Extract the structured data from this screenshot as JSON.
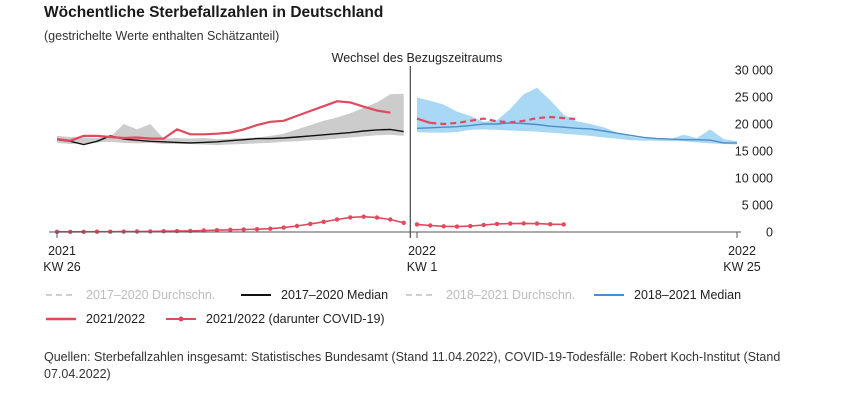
{
  "title": "Wöchentliche Sterbefallzahlen in Deutschland",
  "subtitle": "(gestrichelte Werte enthalten Schätzanteil)",
  "source": "Quellen: Sterbefallzahlen insgesamt: Statistisches Bundesamt (Stand 11.04.2022), COVID-19-Todesfälle: Robert Koch-Institut (Stand 07.04.2022)",
  "legend": [
    {
      "key": "avg1720",
      "label": "2017–2020 Durchschn.",
      "color": "#cfcfcf",
      "style": "dash",
      "faded": true
    },
    {
      "key": "med1720",
      "label": "2017–2020 Median",
      "color": "#111111",
      "style": "solid",
      "faded": false
    },
    {
      "key": "avg1821",
      "label": "2018–2021 Durchschn.",
      "color": "#cfcfcf",
      "style": "dash",
      "faded": true
    },
    {
      "key": "med1821",
      "label": "2018–2021 Median",
      "color": "#4a8fc9",
      "style": "solid",
      "faded": false
    },
    {
      "key": "y2122",
      "label": "2021/2022",
      "color": "#e0495e",
      "style": "solid",
      "faded": false
    },
    {
      "key": "covid",
      "label": "2021/2022 (darunter COVID-19)",
      "color": "#e0495e",
      "style": "dots",
      "faded": false
    }
  ],
  "chart_data": {
    "type": "line",
    "annotation": "Wechsel des Bezugszeitraums",
    "x_ticks": [
      {
        "index": 0,
        "year": "2021",
        "week": "KW 26"
      },
      {
        "index": 27,
        "year": "2022",
        "week": "KW 1"
      },
      {
        "index": 51,
        "year": "2022",
        "week": "KW 25"
      }
    ],
    "y_ticks": [
      "0",
      "5 000",
      "10 000",
      "15 000",
      "20 000",
      "25 000",
      "30 000"
    ],
    "y_tick_values": [
      0,
      5000,
      10000,
      15000,
      20000,
      25000,
      30000
    ],
    "ylim": [
      0,
      30000
    ],
    "x_count": 52,
    "grid": false,
    "band_2017_2020": {
      "x_start": 0,
      "min": [
        16500,
        16300,
        16400,
        16600,
        16700,
        16500,
        16400,
        16500,
        16300,
        16300,
        16300,
        16200,
        16100,
        16200,
        16300,
        16400,
        16500,
        16700,
        16800,
        17000,
        17100,
        17300,
        17500,
        17700,
        17900,
        18000,
        17800
      ],
      "max": [
        17800,
        17600,
        17500,
        17400,
        17600,
        20000,
        19000,
        20000,
        17300,
        17400,
        17300,
        17400,
        17200,
        17300,
        17400,
        17500,
        17800,
        18200,
        19000,
        19800,
        20600,
        21200,
        22000,
        23000,
        24000,
        25500,
        25600
      ]
    },
    "band_2018_2021": {
      "x_start": 27,
      "min": [
        18500,
        18400,
        18400,
        18500,
        18900,
        19000,
        18900,
        18800,
        18700,
        18600,
        18400,
        18200,
        18000,
        17800,
        17500,
        17300,
        17000,
        16900,
        16900,
        16800,
        16800,
        16600,
        16400,
        16300,
        16200
      ],
      "max": [
        24900,
        24300,
        23600,
        22300,
        21500,
        20400,
        20700,
        22800,
        25500,
        26700,
        24400,
        21700,
        20500,
        20000,
        19400,
        18400,
        17700,
        17300,
        17300,
        17200,
        18000,
        17400,
        19000,
        17200,
        16800
      ]
    },
    "series": [
      {
        "key": "med1720",
        "x_start": 0,
        "values": [
          17100,
          16800,
          16200,
          16800,
          17800,
          17200,
          17000,
          16800,
          16700,
          16600,
          16500,
          16600,
          16700,
          16900,
          17100,
          17300,
          17300,
          17400,
          17600,
          17800,
          18000,
          18200,
          18400,
          18700,
          18900,
          19000,
          18600
        ]
      },
      {
        "key": "med1821",
        "x_start": 27,
        "values": [
          19200,
          19300,
          19400,
          19500,
          19700,
          20000,
          20000,
          20200,
          20100,
          19900,
          19600,
          19400,
          19200,
          19100,
          18700,
          18300,
          17900,
          17500,
          17300,
          17200,
          17100,
          17100,
          17000,
          16500,
          16500
        ]
      },
      {
        "key": "y2122",
        "x_start": 0,
        "values": [
          17200,
          16900,
          17800,
          17800,
          17600,
          17400,
          17500,
          17300,
          17300,
          19000,
          18100,
          18100,
          18200,
          18400,
          19000,
          19800,
          20400,
          20600,
          21500,
          22400,
          23300,
          24200,
          24000,
          23200,
          22500,
          22100
        ]
      },
      {
        "key": "y2122",
        "x_start": 27,
        "values": [
          21000,
          20200
        ]
      },
      {
        "key": "y2122_est",
        "x_start": 28,
        "values": [
          20200,
          20000,
          20200,
          20600,
          21000,
          20500,
          20300,
          20600,
          21100,
          21300,
          21100,
          20900
        ]
      },
      {
        "key": "covid",
        "x_start": 0,
        "values": [
          40,
          40,
          40,
          50,
          60,
          70,
          90,
          110,
          140,
          170,
          210,
          270,
          340,
          410,
          460,
          520,
          620,
          810,
          1120,
          1500,
          1880,
          2320,
          2700,
          2840,
          2670,
          2310,
          1700
        ]
      },
      {
        "key": "covid",
        "x_start": 27,
        "values": [
          1400,
          1200,
          1050,
          1000,
          1100,
          1300,
          1500,
          1550,
          1600,
          1550,
          1450,
          1400
        ]
      }
    ]
  }
}
